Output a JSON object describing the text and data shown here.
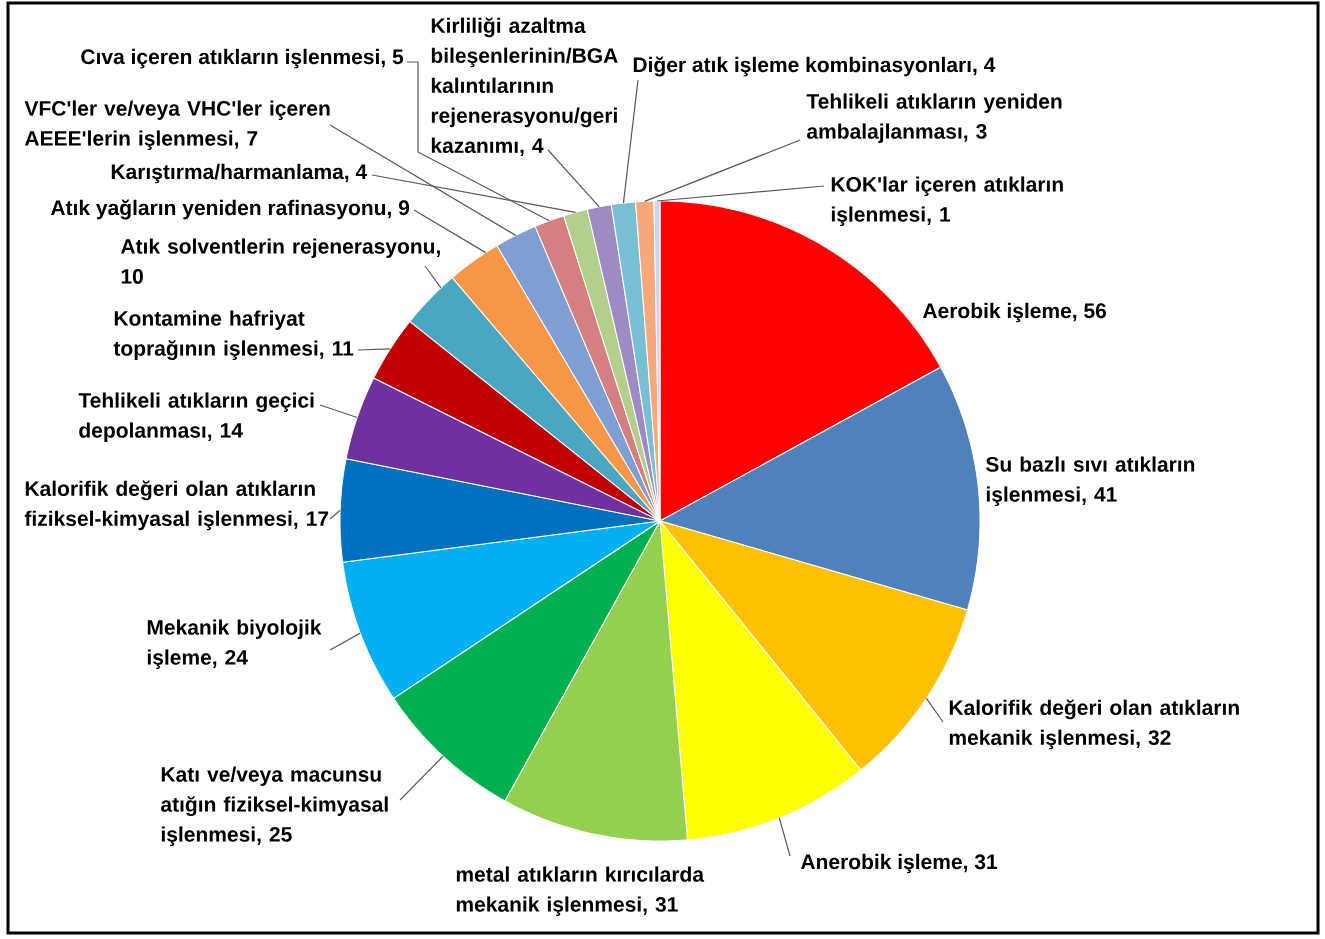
{
  "chart_data": {
    "type": "pie",
    "categories": [
      "Aerobik işleme, 56",
      "Su bazlı sıvı atıkların işlenmesi, 41",
      "Kalorifik değeri olan atıkların mekanik işlenmesi, 32",
      "Anerobik işleme, 31",
      "metal atıkların kırıcılarda mekanik işlenmesi, 31",
      "Katı ve/veya macunsu atığın fiziksel-kimyasal işlenmesi, 25",
      "Mekanik biyolojik işleme, 24",
      "Kalorifik değeri olan atıkların fiziksel-kimyasal işlenmesi, 17",
      "Tehlikeli atıkların geçici depolanması, 14",
      "Kontamine hafriyat toprağının işlenmesi, 11",
      "Atık solventlerin rejenerasyonu, 10",
      "Atık yağların yeniden rafinasyonu, 9",
      "VFC'ler ve/veya VHC'ler içeren AEEE'lerin işlenmesi, 7",
      "Cıva içeren atıkların işlenmesi, 5",
      "Karıştırma/harmanlama, 4",
      "Kirliliği azaltma bileşenlerinin/BGA kalıntılarının rejenerasyonu/geri kazanımı, 4",
      "Diğer atık işleme kombinasyonları, 4",
      "Tehlikeli atıkların yeniden ambalajlanması, 3",
      "KOK'lar içeren atıkların işlenmesi, 1"
    ],
    "values": [
      56,
      41,
      32,
      31,
      31,
      25,
      24,
      17,
      14,
      11,
      10,
      9,
      7,
      5,
      4,
      4,
      4,
      3,
      1
    ],
    "colors": [
      "#ff0000",
      "#4f81bd",
      "#ffc000",
      "#ffff00",
      "#92d050",
      "#00b050",
      "#00b0f0",
      "#0070c0",
      "#7030a0",
      "#c00000",
      "#4aa7c4",
      "#f79646",
      "#7f9fd4",
      "#d47f80",
      "#b4cf8c",
      "#9e8bc3",
      "#78bfd6",
      "#f6a878",
      "#c6d9f1"
    ]
  }
}
